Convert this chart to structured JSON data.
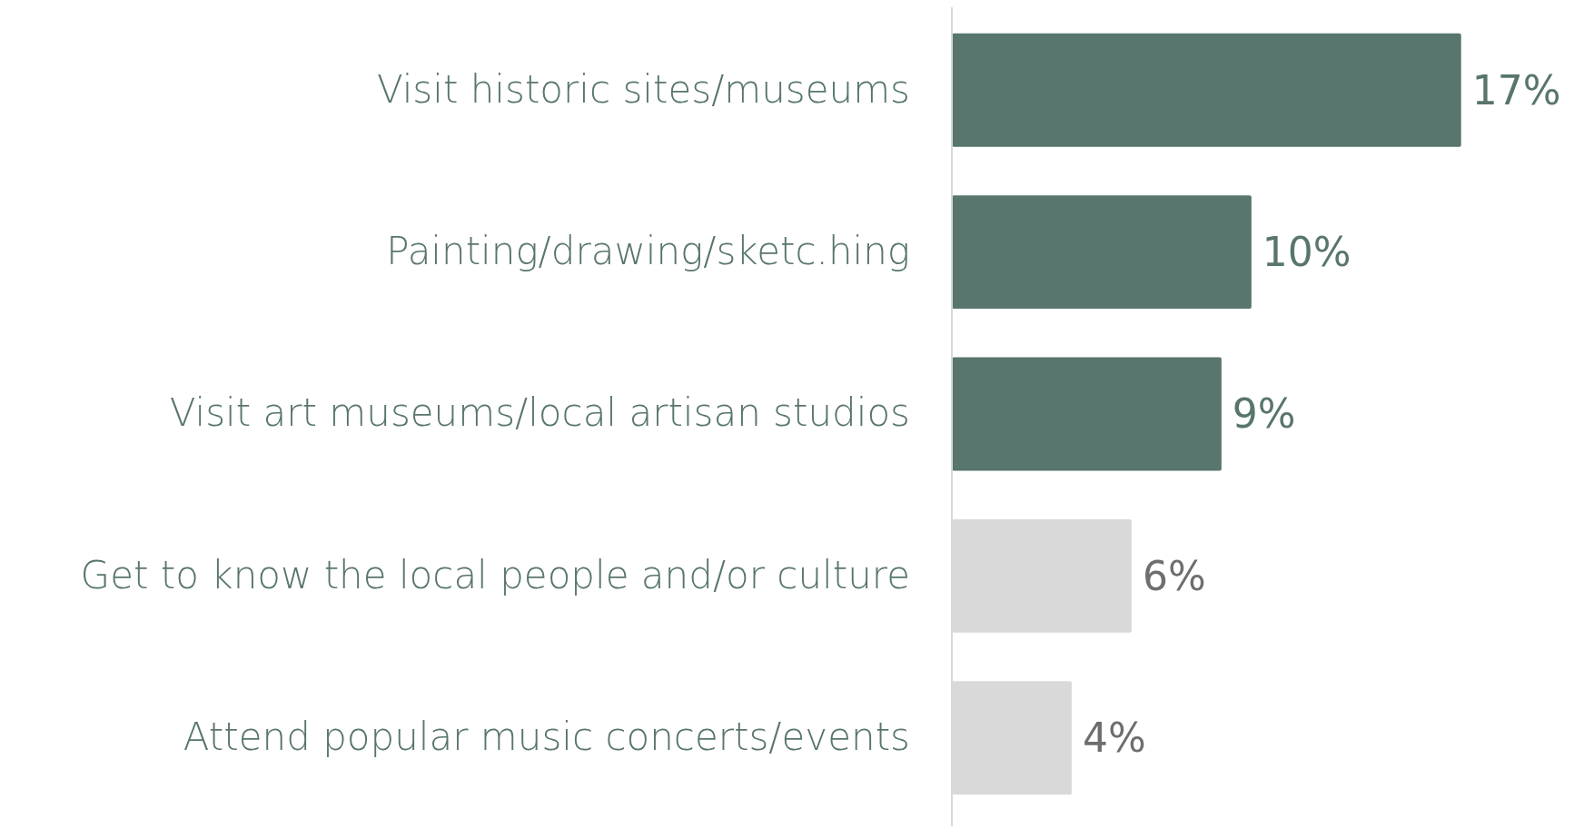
{
  "chart_data": {
    "type": "bar",
    "orientation": "horizontal",
    "categories": [
      "Visit historic sites/museums",
      "Painting/drawing/sketc.hing",
      "Visit art museums/local artisan studios",
      "Get to know the local people and/or culture",
      "Attend popular music concerts/events"
    ],
    "values": [
      17,
      10,
      9,
      6,
      4
    ],
    "colors": [
      "#58756e",
      "#58756e",
      "#58756e",
      "#d9d9d9",
      "#d9d9d9"
    ],
    "value_labels": [
      "17%",
      "10%",
      "9%",
      "6%",
      "4%"
    ]
  }
}
